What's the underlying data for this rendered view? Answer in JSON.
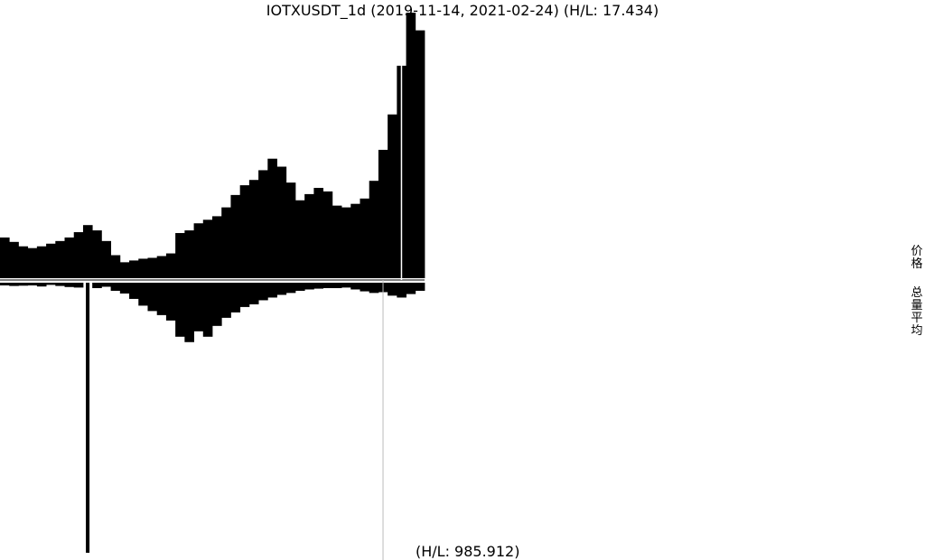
{
  "chart_data": {
    "type": "bar",
    "title": "IOTXUSDT_1d (2019-11-14, 2021-02-24) (H/L: 17.434)",
    "volume_hl_label": "(H/L: 985.912)",
    "x_range": [
      "2019-11-14",
      "2021-02-24"
    ],
    "series": [
      {
        "name": "价格",
        "kind": "price",
        "high_low_ratio": 17.434,
        "values": [
          0.0046,
          0.0041,
          0.0036,
          0.0034,
          0.0036,
          0.0039,
          0.0042,
          0.0046,
          0.0052,
          0.006,
          0.0054,
          0.0042,
          0.0026,
          0.0018,
          0.002,
          0.0022,
          0.0023,
          0.0025,
          0.0028,
          0.0051,
          0.0054,
          0.0062,
          0.0066,
          0.007,
          0.008,
          0.0094,
          0.0105,
          0.0111,
          0.0122,
          0.0135,
          0.0126,
          0.0108,
          0.0088,
          0.0095,
          0.0102,
          0.0098,
          0.0082,
          0.008,
          0.0084,
          0.009,
          0.011,
          0.0145,
          0.0185,
          0.024,
          0.03,
          0.028
        ]
      },
      {
        "name": "总量平均",
        "kind": "volume",
        "high_low_ratio": 985.912,
        "values": [
          1.0,
          1.2,
          1.1,
          1.0,
          1.4,
          0.8,
          1.2,
          1.6,
          1.8,
          100.0,
          2.0,
          1.5,
          3.0,
          4.0,
          6.0,
          8.5,
          10.5,
          12.0,
          14.0,
          20.0,
          22.0,
          18.0,
          20.0,
          16.0,
          13.0,
          11.0,
          9.0,
          8.0,
          6.5,
          5.5,
          4.5,
          3.8,
          3.0,
          2.5,
          2.2,
          2.0,
          2.0,
          1.8,
          2.5,
          3.2,
          3.8,
          3.5,
          4.8,
          5.5,
          4.2,
          3.0
        ]
      }
    ],
    "marker_index": 41,
    "marker_index_2": 43
  }
}
